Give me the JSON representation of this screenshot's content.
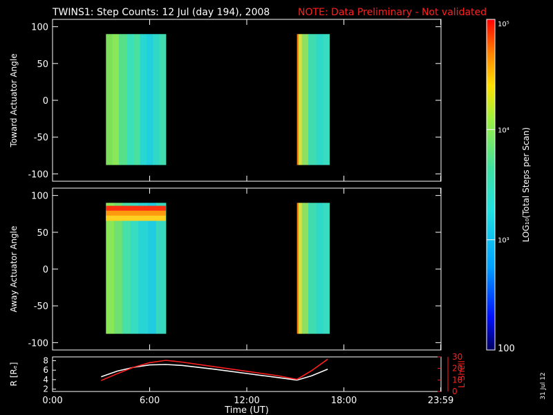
{
  "title": {
    "main": "TWINS1: Step Counts: 12 Jul (day 194), 2008",
    "note": "NOTE: Data Preliminary - Not validated",
    "note_color": "#ff2020"
  },
  "footer_date": "31 Jul 12",
  "colorbar": {
    "label": "LOG₁₀(Total Steps per Scan)",
    "ticks": [
      {
        "value": 100,
        "label": "100"
      },
      {
        "value": 1000,
        "label": "10³"
      },
      {
        "value": 10000,
        "label": "10⁴"
      },
      {
        "value": 100000,
        "label": "10⁵"
      }
    ],
    "range": [
      100,
      100000
    ],
    "scale": "log"
  },
  "chart_data": [
    {
      "type": "heatmap",
      "name": "toward",
      "ylabel": "Toward Actuator Angle",
      "xlim": [
        0,
        24
      ],
      "ylim": [
        -110,
        110
      ],
      "yticks": [
        {
          "value": 100,
          "label": "100"
        },
        {
          "value": 50,
          "label": "50"
        },
        {
          "value": 0,
          "label": "0"
        },
        {
          "value": -50,
          "label": "-50"
        },
        {
          "value": -100,
          "label": "-100"
        }
      ],
      "blocks": [
        {
          "x_start": 3.3,
          "x_end": 7.0,
          "y_start": -88,
          "y_end": 90,
          "stripes": [
            {
              "t": 3.3,
              "c": "#7ee05a"
            },
            {
              "t": 3.7,
              "c": "#8ae858"
            },
            {
              "t": 4.1,
              "c": "#58e088"
            },
            {
              "t": 4.6,
              "c": "#3ae0b8"
            },
            {
              "t": 5.0,
              "c": "#4ae0a0"
            },
            {
              "t": 5.4,
              "c": "#28d8d0"
            },
            {
              "t": 5.8,
              "c": "#20d0dc"
            },
            {
              "t": 6.2,
              "c": "#30d8c8"
            },
            {
              "t": 6.6,
              "c": "#40dcb0"
            }
          ]
        },
        {
          "x_start": 15.1,
          "x_end": 17.1,
          "y_start": -88,
          "y_end": 90,
          "stripes": [
            {
              "t": 15.1,
              "c": "#ff7a10"
            },
            {
              "t": 15.2,
              "c": "#d8e040"
            },
            {
              "t": 15.4,
              "c": "#8ee060"
            },
            {
              "t": 15.8,
              "c": "#40dcb0"
            },
            {
              "t": 16.3,
              "c": "#30d8c8"
            },
            {
              "t": 16.7,
              "c": "#38dcc0"
            }
          ]
        }
      ]
    },
    {
      "type": "heatmap",
      "name": "away",
      "ylabel": "Away Actuator Angle",
      "xlim": [
        0,
        24
      ],
      "ylim": [
        -110,
        110
      ],
      "yticks": [
        {
          "value": 100,
          "label": "100"
        },
        {
          "value": 50,
          "label": "50"
        },
        {
          "value": 0,
          "label": "0"
        },
        {
          "value": -50,
          "label": "-50"
        },
        {
          "value": -100,
          "label": "-100"
        }
      ],
      "blocks": [
        {
          "x_start": 3.3,
          "x_end": 7.0,
          "y_start": -88,
          "y_end": 90,
          "stripes": [
            {
              "t": 3.3,
              "c": "#8ae858"
            },
            {
              "t": 3.8,
              "c": "#70e070"
            },
            {
              "t": 4.3,
              "c": "#48e0a8"
            },
            {
              "t": 4.8,
              "c": "#38dcc0"
            },
            {
              "t": 5.3,
              "c": "#28d4d4"
            },
            {
              "t": 5.9,
              "c": "#20cce0"
            },
            {
              "t": 6.4,
              "c": "#38d8c0"
            }
          ],
          "band": {
            "y_start": 66,
            "y_end": 86,
            "x_start": 3.3,
            "x_end": 7.0,
            "colors": [
              "#ff3010",
              "#ff9a10",
              "#ffd020"
            ]
          }
        },
        {
          "x_start": 15.1,
          "x_end": 17.1,
          "y_start": -88,
          "y_end": 90,
          "stripes": [
            {
              "t": 15.1,
              "c": "#ff7a10"
            },
            {
              "t": 15.2,
              "c": "#d8e040"
            },
            {
              "t": 15.4,
              "c": "#8ee060"
            },
            {
              "t": 15.8,
              "c": "#40dcb0"
            },
            {
              "t": 16.3,
              "c": "#30d8c8"
            },
            {
              "t": 16.7,
              "c": "#38dcc0"
            }
          ]
        }
      ]
    },
    {
      "type": "line",
      "name": "orbit",
      "ylabel": "R [Rₑ]",
      "ylabel_right": "L Shell",
      "xlabel": "Time (UT)",
      "xlim": [
        0,
        24
      ],
      "ylim_left": [
        1.5,
        8.8
      ],
      "ylim_right": [
        0,
        30
      ],
      "yticks_left": [
        "2",
        "4",
        "6",
        "8"
      ],
      "yticks_left_values": [
        2,
        4,
        6,
        8
      ],
      "yticks_right": [
        "0",
        "10",
        "20",
        "30"
      ],
      "yticks_right_values": [
        0,
        10,
        20,
        30
      ],
      "xticks": [
        {
          "value": 0,
          "label": "0:00"
        },
        {
          "value": 6,
          "label": "6:00"
        },
        {
          "value": 12,
          "label": "12:00"
        },
        {
          "value": 18,
          "label": "18:00"
        },
        {
          "value": 23.98,
          "label": "23:59"
        }
      ],
      "series": [
        {
          "color": "#ffffff",
          "axis": "left",
          "x": [
            3.0,
            4.0,
            5.0,
            6.0,
            7.0,
            8.0,
            10.0,
            12.0,
            14.0,
            15.1,
            16.0,
            17.0
          ],
          "y": [
            4.6,
            5.8,
            6.6,
            7.1,
            7.2,
            7.0,
            6.2,
            5.3,
            4.4,
            3.9,
            4.8,
            6.2
          ]
        },
        {
          "color": "#ff2020",
          "axis": "right",
          "x": [
            3.0,
            4.0,
            5.0,
            6.0,
            7.0,
            8.0,
            10.0,
            12.0,
            14.0,
            15.1,
            16.0,
            17.0
          ],
          "y": [
            9.5,
            15.5,
            21.0,
            25.0,
            27.0,
            25.5,
            21.5,
            17.5,
            13.5,
            10.5,
            18.0,
            28.0
          ]
        }
      ]
    }
  ]
}
